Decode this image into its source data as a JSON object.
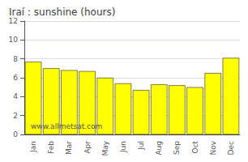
{
  "chart_data": {
    "type": "bar",
    "title": "Iraí : sunshine (hours)",
    "categories": [
      "Jan",
      "Feb",
      "Mar",
      "Apr",
      "May",
      "Jun",
      "Jul",
      "Aug",
      "Sep",
      "Oct",
      "Nov",
      "Dec"
    ],
    "values": [
      7.7,
      7.0,
      6.8,
      6.7,
      6.0,
      5.4,
      4.7,
      5.3,
      5.2,
      5.0,
      6.5,
      8.1
    ],
    "color": "#ffff00",
    "ylim": [
      0,
      12
    ],
    "yticks": [
      0,
      2,
      4,
      6,
      8,
      10,
      12
    ],
    "grid": true,
    "annotation": "www.allmetsat.com"
  }
}
